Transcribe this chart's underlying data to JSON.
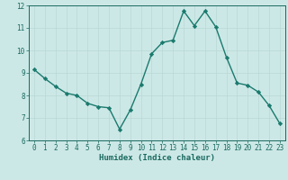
{
  "x": [
    0,
    1,
    2,
    3,
    4,
    5,
    6,
    7,
    8,
    9,
    10,
    11,
    12,
    13,
    14,
    15,
    16,
    17,
    18,
    19,
    20,
    21,
    22,
    23
  ],
  "y": [
    9.15,
    8.75,
    8.4,
    8.1,
    8.0,
    7.65,
    7.5,
    7.45,
    6.5,
    7.35,
    8.5,
    9.85,
    10.35,
    10.45,
    11.75,
    11.1,
    11.75,
    11.05,
    9.7,
    8.55,
    8.45,
    8.15,
    7.55,
    6.75
  ],
  "xlim": [
    -0.5,
    23.5
  ],
  "ylim": [
    6,
    12
  ],
  "xticks": [
    0,
    1,
    2,
    3,
    4,
    5,
    6,
    7,
    8,
    9,
    10,
    11,
    12,
    13,
    14,
    15,
    16,
    17,
    18,
    19,
    20,
    21,
    22,
    23
  ],
  "yticks": [
    6,
    7,
    8,
    9,
    10,
    11,
    12
  ],
  "xlabel": "Humidex (Indice chaleur)",
  "line_color": "#1a7a6e",
  "marker": "D",
  "marker_size": 2.2,
  "bg_color": "#cce8e6",
  "grid_color": "#b8d8d6",
  "tick_color": "#1a6a60",
  "label_color": "#1a6a60",
  "line_width": 1.0,
  "xlabel_fontsize": 6.5,
  "tick_fontsize": 5.5
}
